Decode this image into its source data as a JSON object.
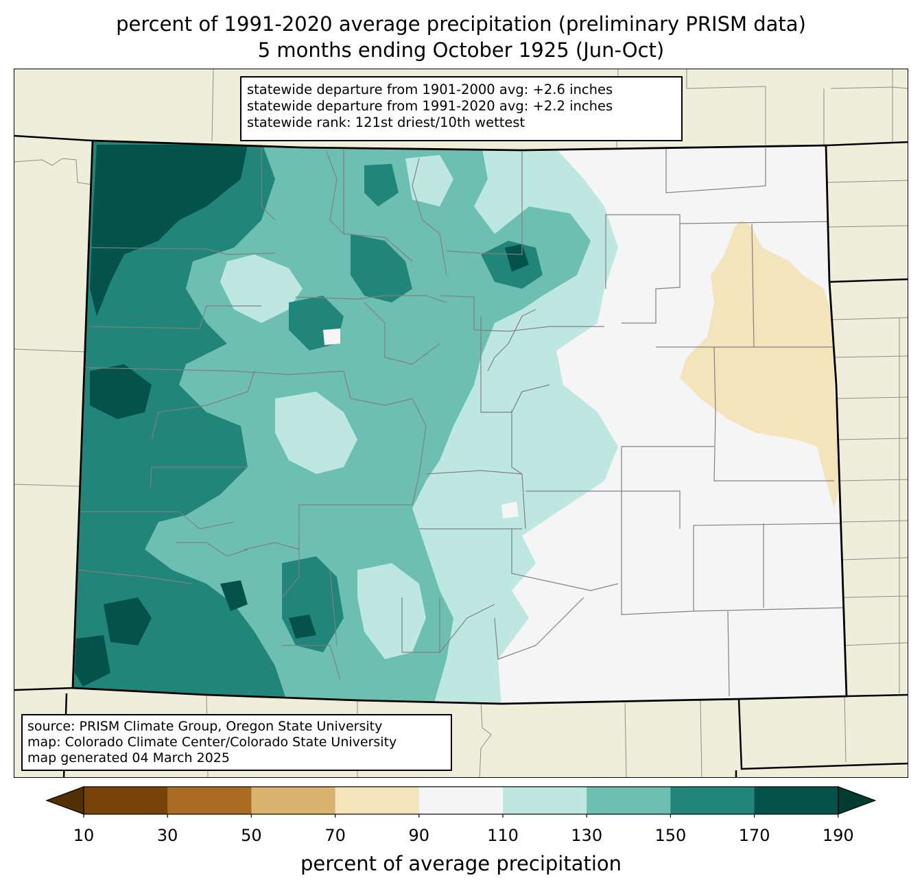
{
  "title": {
    "line1": "percent of 1991-2020 average precipitation (preliminary PRISM data)",
    "line2": "5 months ending October 1925 (Jun-Oct)"
  },
  "stats": {
    "line1": "statewide departure from 1901-2000 avg: +2.6 inches",
    "line2": "statewide departure from 1991-2020 avg: +2.2 inches",
    "line3": "statewide rank: 121st driest/10th wettest"
  },
  "source": {
    "line1": "source: PRISM Climate Group, Oregon State University",
    "line2": "map: Colorado Climate Center/Colorado State University",
    "line3": "map generated 04 March 2025"
  },
  "colorbar": {
    "label": "percent of average precipitation",
    "ticks": [
      "10",
      "30",
      "50",
      "70",
      "90",
      "110",
      "130",
      "150",
      "170",
      "190"
    ],
    "colors": [
      "#774309",
      "#ab6d22",
      "#d9b36d",
      "#f4e4bc",
      "#f4f5f4",
      "#bee7e1",
      "#6dbfb2",
      "#218579",
      "#03534a"
    ],
    "under_color": "#543005",
    "over_color": "#003c30"
  },
  "colors": {
    "background": "#efeedb",
    "state_border": "#000000",
    "county_border": "#808080"
  }
}
